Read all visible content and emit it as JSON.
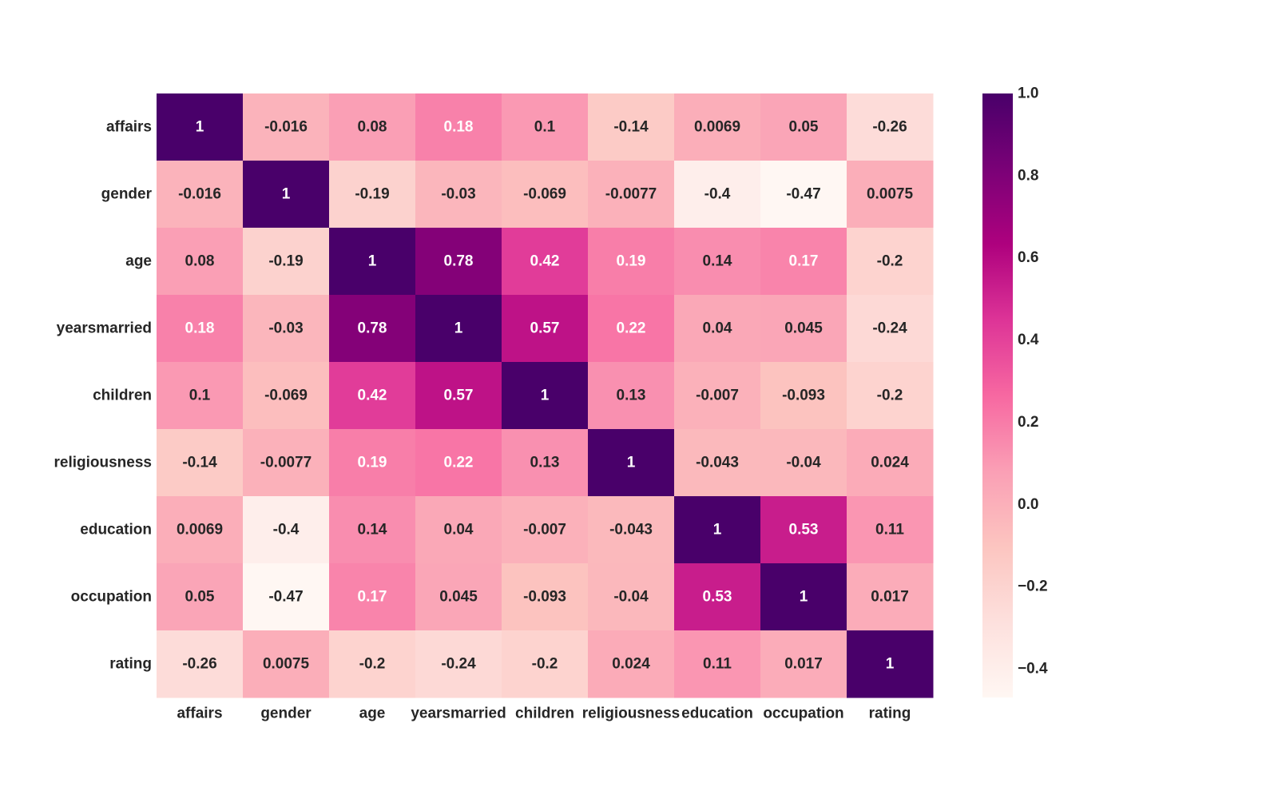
{
  "chart_data": {
    "type": "heatmap",
    "title": "",
    "xlabel": "",
    "ylabel": "",
    "row_labels": [
      "affairs",
      "gender",
      "age",
      "yearsmarried",
      "children",
      "religiousness",
      "education",
      "occupation",
      "rating"
    ],
    "col_labels": [
      "affairs",
      "gender",
      "age",
      "yearsmarried",
      "children",
      "religiousness",
      "education",
      "occupation",
      "rating"
    ],
    "values": [
      [
        1,
        -0.016,
        0.08,
        0.18,
        0.1,
        -0.14,
        0.0069,
        0.05,
        -0.26
      ],
      [
        -0.016,
        1,
        -0.19,
        -0.03,
        -0.069,
        -0.0077,
        -0.4,
        -0.47,
        0.0075
      ],
      [
        0.08,
        -0.19,
        1,
        0.78,
        0.42,
        0.19,
        0.14,
        0.17,
        -0.2
      ],
      [
        0.18,
        -0.03,
        0.78,
        1,
        0.57,
        0.22,
        0.04,
        0.045,
        -0.24
      ],
      [
        0.1,
        -0.069,
        0.42,
        0.57,
        1,
        0.13,
        -0.007,
        -0.093,
        -0.2
      ],
      [
        -0.14,
        -0.0077,
        0.19,
        0.22,
        0.13,
        1,
        -0.043,
        -0.04,
        0.024
      ],
      [
        0.0069,
        -0.4,
        0.14,
        0.04,
        -0.007,
        -0.043,
        1,
        0.53,
        0.11
      ],
      [
        0.05,
        -0.47,
        0.17,
        0.045,
        -0.093,
        -0.04,
        0.53,
        1,
        0.017
      ],
      [
        -0.26,
        0.0075,
        -0.2,
        -0.24,
        -0.2,
        0.024,
        0.11,
        0.017,
        1
      ]
    ],
    "cell_labels": [
      [
        "1",
        "-0.016",
        "0.08",
        "0.18",
        "0.1",
        "-0.14",
        "0.0069",
        "0.05",
        "-0.26"
      ],
      [
        "-0.016",
        "1",
        "-0.19",
        "-0.03",
        "-0.069",
        "-0.0077",
        "-0.4",
        "-0.47",
        "0.0075"
      ],
      [
        "0.08",
        "-0.19",
        "1",
        "0.78",
        "0.42",
        "0.19",
        "0.14",
        "0.17",
        "-0.2"
      ],
      [
        "0.18",
        "-0.03",
        "0.78",
        "1",
        "0.57",
        "0.22",
        "0.04",
        "0.045",
        "-0.24"
      ],
      [
        "0.1",
        "-0.069",
        "0.42",
        "0.57",
        "1",
        "0.13",
        "-0.007",
        "-0.093",
        "-0.2"
      ],
      [
        "-0.14",
        "-0.0077",
        "0.19",
        "0.22",
        "0.13",
        "1",
        "-0.043",
        "-0.04",
        "0.024"
      ],
      [
        "0.0069",
        "-0.4",
        "0.14",
        "0.04",
        "-0.007",
        "-0.043",
        "1",
        "0.53",
        "0.11"
      ],
      [
        "0.05",
        "-0.47",
        "0.17",
        "0.045",
        "-0.093",
        "-0.04",
        "0.53",
        "1",
        "0.017"
      ],
      [
        "-0.26",
        "0.0075",
        "-0.2",
        "-0.24",
        "-0.2",
        "0.024",
        "0.11",
        "0.017",
        "1"
      ]
    ],
    "color_range": [
      -0.47,
      1
    ],
    "colormap": "RdPu",
    "colormap_stops": [
      {
        "t": 0.0,
        "color": "#fff7f3"
      },
      {
        "t": 0.125,
        "color": "#fde0dd"
      },
      {
        "t": 0.25,
        "color": "#fcc5c0"
      },
      {
        "t": 0.375,
        "color": "#fa9fb5"
      },
      {
        "t": 0.5,
        "color": "#f768a1"
      },
      {
        "t": 0.625,
        "color": "#dd3497"
      },
      {
        "t": 0.75,
        "color": "#ae017e"
      },
      {
        "t": 0.875,
        "color": "#7a0177"
      },
      {
        "t": 1.0,
        "color": "#49006a"
      }
    ],
    "colorbar": {
      "ticks": [
        1.0,
        0.8,
        0.6,
        0.4,
        0.2,
        0.0,
        -0.2,
        -0.4
      ],
      "tick_labels": [
        "1.0",
        "0.8",
        "0.6",
        "0.4",
        "0.2",
        "0.0",
        "−0.2",
        "−0.4"
      ],
      "position": "right"
    },
    "grid": false
  }
}
